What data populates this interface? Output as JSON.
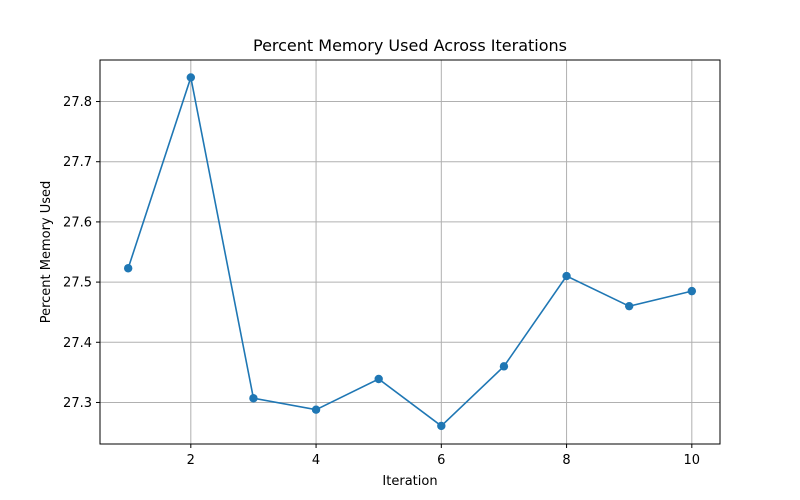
{
  "chart_data": {
    "type": "line",
    "title": "Percent Memory Used Across Iterations",
    "xlabel": "Iteration",
    "ylabel": "Percent Memory Used",
    "xlim": [
      0.55,
      10.45
    ],
    "ylim": [
      27.231,
      27.869
    ],
    "xticks": [
      2,
      4,
      6,
      8,
      10
    ],
    "yticks": [
      27.3,
      27.4,
      27.5,
      27.6,
      27.7,
      27.8
    ],
    "ytick_labels": [
      "27.3",
      "27.4",
      "27.5",
      "27.6",
      "27.7",
      "27.8"
    ],
    "xtick_labels": [
      "2",
      "4",
      "6",
      "8",
      "10"
    ],
    "grid": true,
    "series": [
      {
        "color": "#1f77b4",
        "marker": "circle",
        "x": [
          1,
          2,
          3,
          4,
          5,
          6,
          7,
          8,
          9,
          10
        ],
        "values": [
          27.523,
          27.84,
          27.307,
          27.288,
          27.339,
          27.261,
          27.36,
          27.51,
          27.46,
          27.485
        ]
      }
    ]
  }
}
